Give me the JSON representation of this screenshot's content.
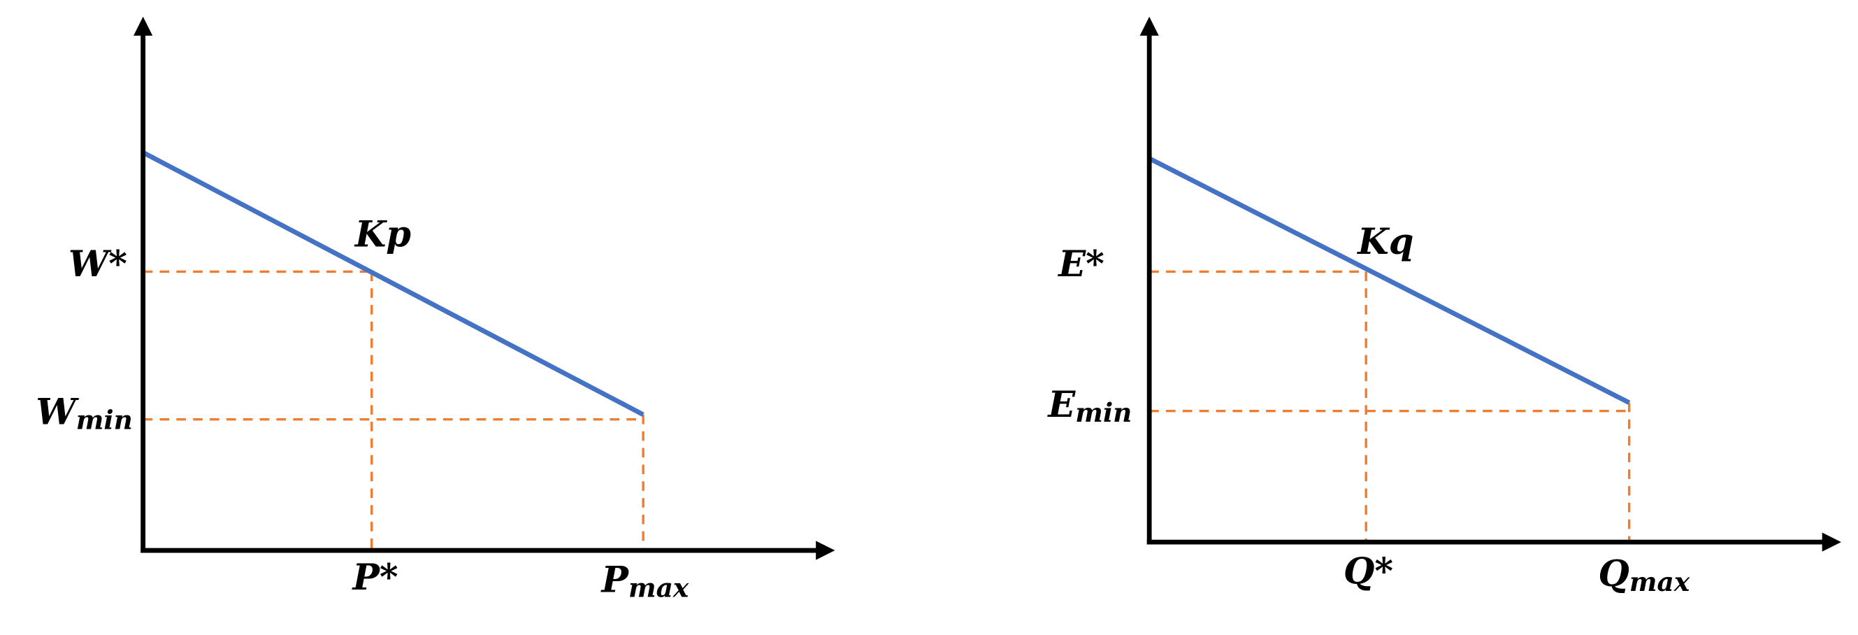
{
  "diagrams": [
    {
      "slope_label": "Kp",
      "y_ref": "W*",
      "y_min": {
        "base": "W",
        "sub": "min"
      },
      "x_ref": "P*",
      "x_max": {
        "base": "P",
        "sub": "max"
      }
    },
    {
      "slope_label": "Kq",
      "y_ref": "E*",
      "y_min": {
        "base": "E",
        "sub": "min"
      },
      "x_ref": "Q*",
      "x_max": {
        "base": "Q",
        "sub": "max"
      }
    }
  ]
}
